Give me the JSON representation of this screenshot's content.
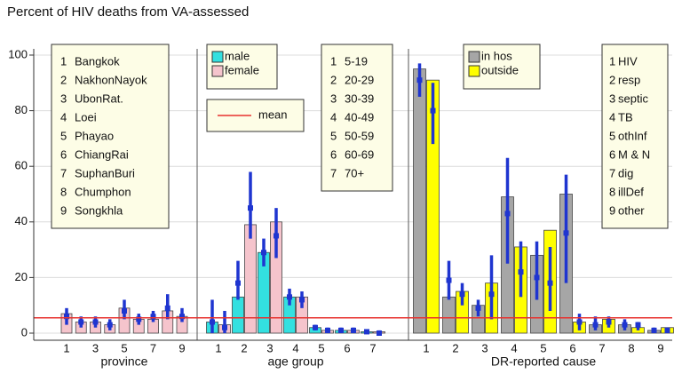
{
  "chart_data": {
    "type": "bar",
    "title": "Percent of HIV deaths from VA-assessed",
    "ylim": [
      0,
      100
    ],
    "yticks": [
      0,
      20,
      40,
      60,
      80,
      100
    ],
    "grid": true,
    "mean": {
      "name": "mean",
      "value": 5.5,
      "color": "#e8322f"
    },
    "error_color": "#1f35d0",
    "panels": [
      {
        "xlabel": "province",
        "categories": [
          "1",
          null,
          "3",
          null,
          "5",
          null,
          "7",
          null,
          "9"
        ],
        "key": [
          [
            "1",
            "Bangkok"
          ],
          [
            "2",
            "NakhonNayok"
          ],
          [
            "3",
            "UbonRat."
          ],
          [
            "4",
            "Loei"
          ],
          [
            "5",
            "Phayao"
          ],
          [
            "6",
            "ChiangRai"
          ],
          [
            "7",
            "SuphanBuri"
          ],
          [
            "8",
            "Chumphon"
          ],
          [
            "9",
            "Songkhla"
          ]
        ],
        "series": [
          {
            "color": "#f5c4cc",
            "values": [
              7,
              4,
              4,
              3,
              9,
              5,
              5,
              8,
              6
            ],
            "estimates": [
              6,
              4,
              4,
              3,
              8,
              5,
              6,
              9,
              6
            ],
            "ci_low": [
              3,
              2,
              2,
              1,
              5,
              3,
              4,
              5,
              4
            ],
            "ci_high": [
              9,
              6,
              6,
              5,
              12,
              7,
              8,
              14,
              9
            ]
          }
        ]
      },
      {
        "xlabel": "age group",
        "categories": [
          "1",
          "2",
          "3",
          "4",
          "5",
          "6",
          "7"
        ],
        "key": [
          [
            "1",
            "5-19"
          ],
          [
            "2",
            "20-29"
          ],
          [
            "3",
            "30-39"
          ],
          [
            "4",
            "40-49"
          ],
          [
            "5",
            "50-59"
          ],
          [
            "6",
            "60-69"
          ],
          [
            "7",
            "70+"
          ]
        ],
        "series": [
          {
            "name": "male",
            "color": "#33e0e0",
            "values": [
              4,
              13,
              29,
              13,
              2,
              1,
              0.5
            ],
            "estimates": [
              4,
              18,
              29,
              13,
              2,
              1,
              0.5
            ],
            "ci_low": [
              0,
              12,
              24,
              10,
              1,
              0,
              0
            ],
            "ci_high": [
              12,
              26,
              34,
              16,
              3,
              2,
              1
            ]
          },
          {
            "name": "female",
            "color": "#f5c4cc",
            "values": [
              3,
              39,
              40,
              13,
              1,
              1,
              0.5
            ],
            "estimates": [
              2,
              45,
              35,
              12,
              1,
              1,
              0
            ],
            "ci_low": [
              0,
              34,
              27,
              9,
              0,
              0,
              0
            ],
            "ci_high": [
              8,
              58,
              45,
              15,
              2,
              2,
              1
            ]
          }
        ]
      },
      {
        "xlabel": "DR-reported cause",
        "categories": [
          "1",
          "2",
          "3",
          "4",
          "5",
          "6",
          "7",
          "8",
          "9"
        ],
        "key": [
          [
            "1",
            "HIV"
          ],
          [
            "2",
            "resp"
          ],
          [
            "3",
            "septic"
          ],
          [
            "4",
            "TB"
          ],
          [
            "5",
            "othInf"
          ],
          [
            "6",
            "M & N"
          ],
          [
            "7",
            "dig"
          ],
          [
            "8",
            "illDef"
          ],
          [
            "9",
            "other"
          ]
        ],
        "series": [
          {
            "name": "in hos",
            "color": "#a6a6a6",
            "values": [
              95,
              13,
              10,
              49,
              28,
              50,
              3,
              3,
              1
            ],
            "estimates": [
              91,
              19,
              9,
              43,
              20,
              36,
              3,
              3,
              1
            ],
            "ci_low": [
              85,
              12,
              6,
              25,
              12,
              18,
              1,
              1,
              0
            ],
            "ci_high": [
              97,
              26,
              12,
              63,
              33,
              57,
              6,
              5,
              2
            ]
          },
          {
            "name": "outside",
            "color": "#ffff00",
            "values": [
              91,
              15,
              18,
              31,
              37,
              4,
              5,
              2,
              2
            ],
            "estimates": [
              80,
              14,
              14,
              22,
              18,
              4,
              4,
              3,
              1
            ],
            "ci_low": [
              68,
              10,
              5,
              13,
              8,
              1,
              2,
              1,
              0
            ],
            "ci_high": [
              90,
              18,
              28,
              33,
              31,
              7,
              6,
              4,
              2
            ]
          }
        ]
      }
    ]
  }
}
